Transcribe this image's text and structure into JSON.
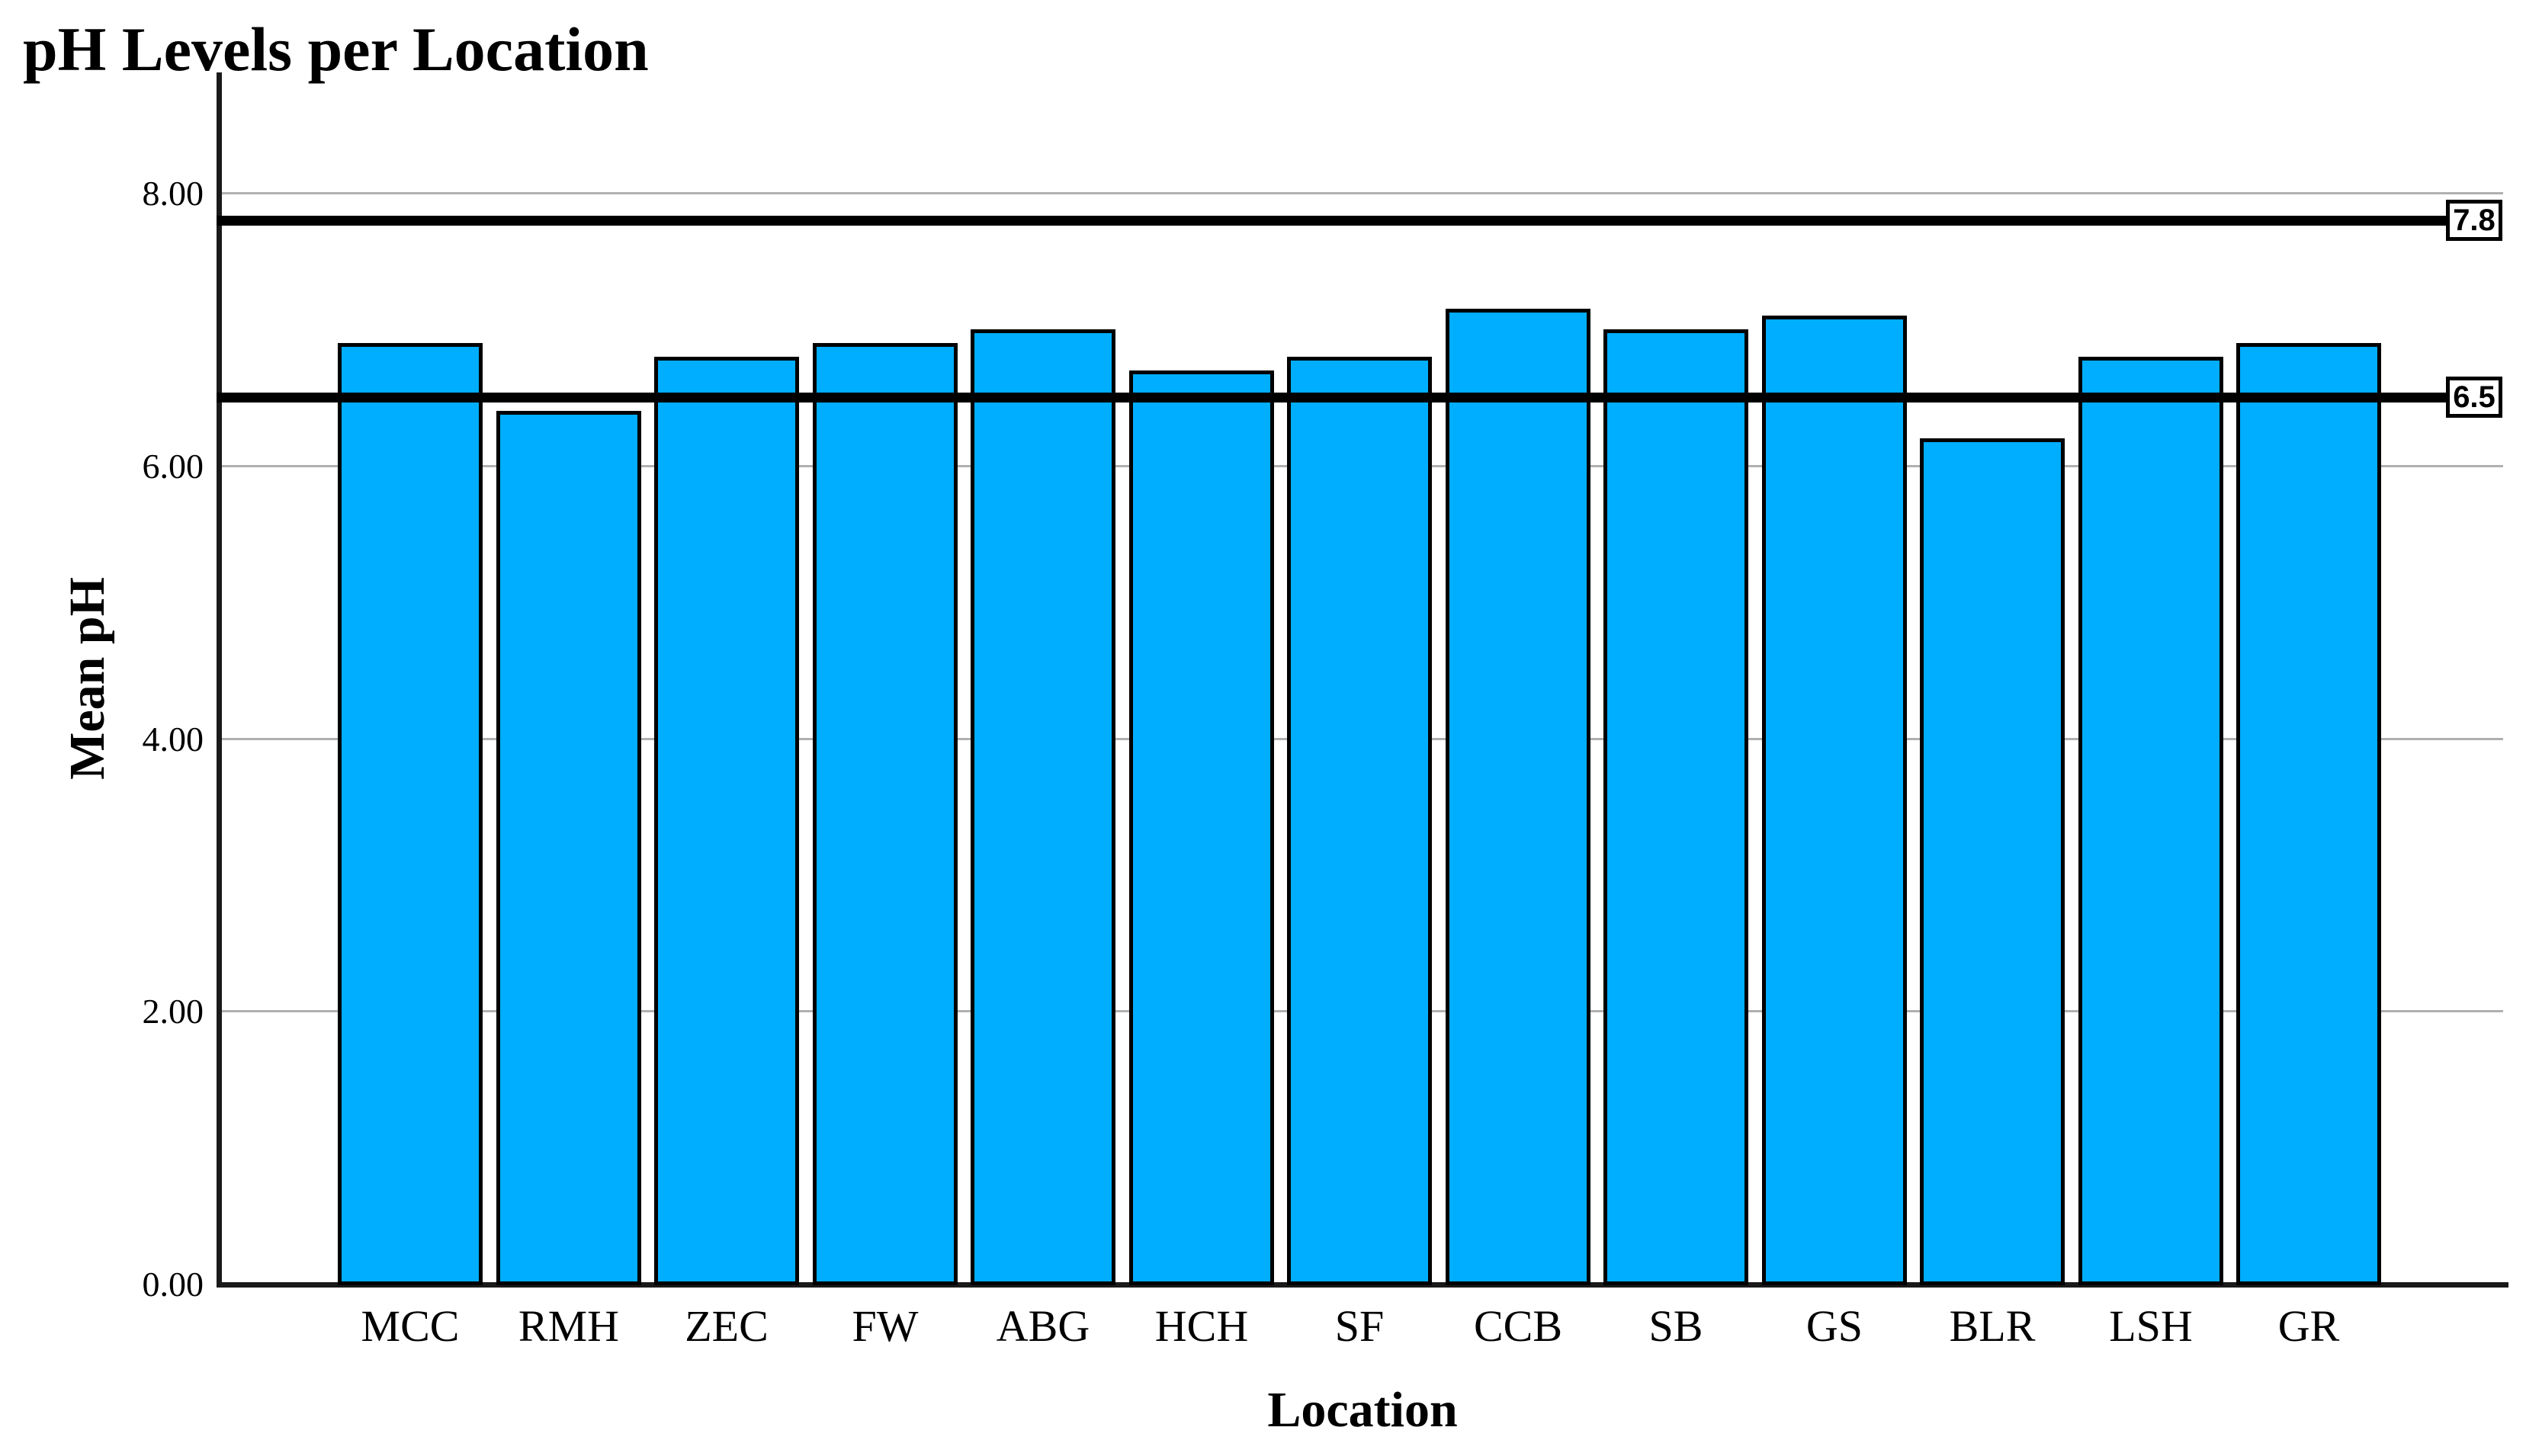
{
  "page": {
    "background": "#ffffff",
    "text_color": "#000000"
  },
  "chart_data": {
    "type": "bar",
    "title": "pH Levels per Location",
    "xlabel": "Location",
    "ylabel": "Mean pH",
    "categories": [
      "MCC",
      "RMH",
      "ZEC",
      "FW",
      "ABG",
      "HCH",
      "SF",
      "CCB",
      "SB",
      "GS",
      "BLR",
      "LSH",
      "GR"
    ],
    "values": [
      6.9,
      6.4,
      6.8,
      6.9,
      7.0,
      6.7,
      6.8,
      7.15,
      7.0,
      7.1,
      6.2,
      6.8,
      6.9
    ],
    "yticks": [
      {
        "value": 0,
        "label": "0.00"
      },
      {
        "value": 2,
        "label": "2.00"
      },
      {
        "value": 4,
        "label": "4.00"
      },
      {
        "value": 6,
        "label": "6.00"
      },
      {
        "value": 8,
        "label": "8.00"
      }
    ],
    "ylim": [
      0,
      8.87
    ],
    "grid": "horizontal-light-gray",
    "legend": "none",
    "bar_color": "#00AEFF",
    "bar_border_color": "#000000",
    "gridline_color": "#b0b0b0",
    "reference_lines": [
      {
        "value": 7.8,
        "label": "7.8",
        "color": "#000000"
      },
      {
        "value": 6.5,
        "label": "6.5",
        "color": "#000000"
      }
    ]
  }
}
